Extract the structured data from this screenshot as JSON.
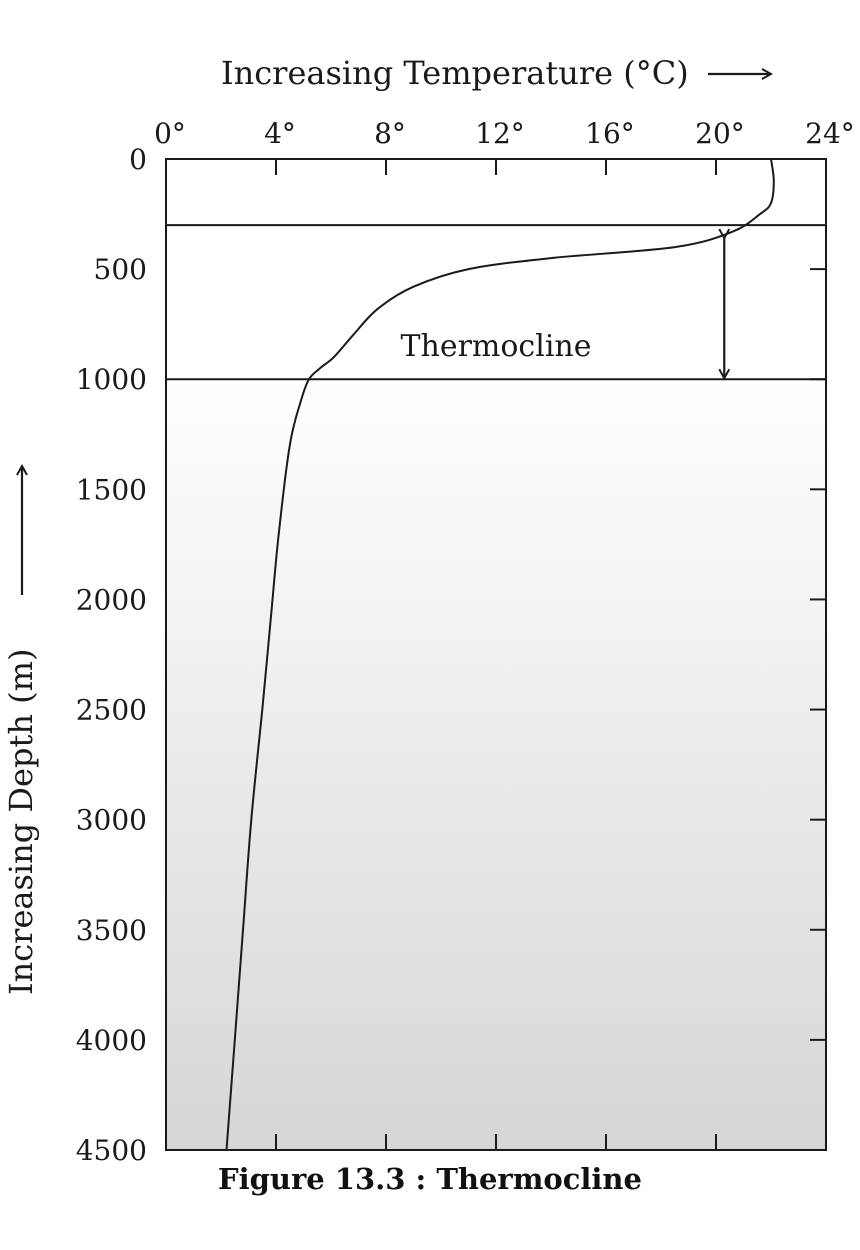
{
  "chart_data": {
    "type": "line",
    "xlabel": "Increasing Temperature (°C)",
    "ylabel": "Increasing Depth (m)",
    "x_axis_position": "top",
    "y_axis_inverted": true,
    "xlim": [
      0,
      24
    ],
    "ylim": [
      0,
      4500
    ],
    "x_ticks": [
      0,
      4,
      8,
      12,
      16,
      20,
      24
    ],
    "x_tick_labels": [
      "0°",
      "4°",
      "8°",
      "12°",
      "16°",
      "20°",
      "24°"
    ],
    "y_ticks": [
      0,
      500,
      1000,
      1500,
      2000,
      2500,
      3000,
      3500,
      4000,
      4500
    ],
    "y_tick_labels": [
      "0",
      "500",
      "1000",
      "1500",
      "2000",
      "2500",
      "3000",
      "3500",
      "4000",
      "4500"
    ],
    "grid": false,
    "series": [
      {
        "x": [
          22.0,
          22.1,
          22.0,
          21.6,
          20.6,
          18.5,
          14.0,
          11.0,
          9.0,
          7.7,
          6.8,
          6.1,
          5.6,
          5.2,
          4.9,
          4.5,
          4.1,
          3.8,
          3.5,
          3.1,
          2.8,
          2.5,
          2.2
        ],
        "y": [
          0,
          100,
          200,
          250,
          330,
          400,
          450,
          500,
          580,
          680,
          800,
          900,
          950,
          1000,
          1100,
          1300,
          1700,
          2100,
          2500,
          3000,
          3500,
          4000,
          4500
        ]
      }
    ],
    "annotations": [
      {
        "text": "Thermocline",
        "x": 12.0,
        "y": 850,
        "type": "label"
      },
      {
        "type": "horizontal-line",
        "y": 300
      },
      {
        "type": "horizontal-line",
        "y": 1000
      },
      {
        "type": "double-arrow",
        "x": 20.3,
        "y_from": 400,
        "y_to": 1000
      }
    ],
    "background": "white upper layer fading to grey with depth below 1000 m"
  },
  "caption": "Figure 13.3 : Thermocline"
}
